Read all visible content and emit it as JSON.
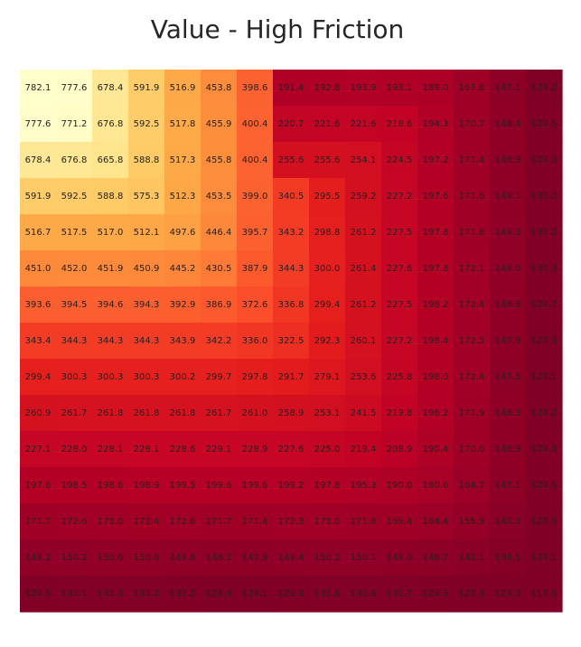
{
  "chart_data": {
    "type": "heatmap",
    "title": "Value - High Friction",
    "xlabel": "",
    "ylabel": "",
    "colormap": "YlOrRd",
    "value_range": [
      127.0,
      782.1
    ],
    "grid": false,
    "values": [
      [
        782.1,
        777.6,
        678.4,
        591.9,
        516.9,
        453.8,
        398.6,
        191.4,
        192.8,
        193.9,
        193.1,
        189.0,
        167.8,
        147.1,
        128.2
      ],
      [
        777.6,
        771.2,
        676.8,
        592.5,
        517.8,
        455.9,
        400.4,
        220.7,
        221.6,
        221.6,
        218.6,
        194.3,
        170.7,
        148.4,
        129.5
      ],
      [
        678.4,
        676.8,
        665.8,
        588.8,
        517.3,
        455.8,
        400.4,
        255.6,
        255.6,
        254.1,
        224.5,
        197.2,
        171.4,
        148.9,
        129.9
      ],
      [
        591.9,
        592.5,
        588.8,
        575.3,
        512.3,
        453.5,
        399.0,
        340.5,
        295.5,
        259.2,
        227.2,
        197.6,
        171.6,
        149.1,
        130.0
      ],
      [
        516.7,
        517.5,
        517.0,
        512.1,
        497.6,
        446.4,
        395.7,
        343.2,
        298.8,
        261.2,
        227.5,
        197.8,
        171.8,
        149.3,
        130.2
      ],
      [
        451.0,
        452.0,
        451.9,
        450.9,
        445.2,
        430.5,
        387.9,
        344.3,
        300.0,
        261.4,
        227.6,
        197.8,
        172.1,
        149.6,
        130.3
      ],
      [
        393.6,
        394.5,
        394.6,
        394.3,
        392.9,
        386.9,
        372.6,
        336.8,
        299.4,
        261.2,
        227.5,
        198.2,
        172.4,
        148.8,
        129.7
      ],
      [
        343.4,
        344.3,
        344.3,
        344.3,
        343.9,
        342.2,
        336.0,
        322.5,
        292.3,
        260.1,
        227.2,
        198.4,
        172.5,
        147.9,
        127.9
      ],
      [
        299.4,
        300.3,
        300.3,
        300.3,
        300.2,
        299.7,
        297.8,
        291.7,
        279.1,
        253.6,
        225.8,
        198.0,
        172.4,
        147.5,
        127.1
      ],
      [
        260.9,
        261.7,
        261.8,
        261.8,
        261.8,
        261.7,
        261.0,
        258.9,
        253.1,
        241.5,
        219.8,
        196.2,
        171.9,
        148.3,
        128.2
      ],
      [
        227.1,
        228.0,
        228.1,
        228.1,
        228.6,
        229.1,
        228.9,
        227.6,
        225.0,
        219.4,
        208.9,
        190.4,
        170.0,
        148.9,
        129.8
      ],
      [
        197.6,
        198.5,
        198.6,
        198.9,
        199.5,
        199.6,
        199.6,
        199.2,
        197.8,
        195.3,
        190.0,
        180.6,
        164.7,
        147.1,
        129.5
      ],
      [
        171.7,
        172.6,
        173.0,
        173.4,
        172.6,
        171.7,
        171.4,
        172.3,
        173.0,
        171.8,
        169.4,
        164.4,
        155.9,
        142.3,
        127.6
      ],
      [
        149.2,
        150.2,
        150.6,
        150.6,
        149.8,
        148.2,
        147.9,
        149.4,
        150.2,
        150.1,
        149.0,
        146.7,
        142.1,
        134.5,
        123.1
      ],
      [
        129.5,
        131.1,
        131.3,
        131.2,
        130.2,
        128.4,
        128.1,
        129.8,
        130.8,
        130.8,
        130.7,
        129.5,
        127.3,
        123.0,
        117.6
      ]
    ]
  }
}
